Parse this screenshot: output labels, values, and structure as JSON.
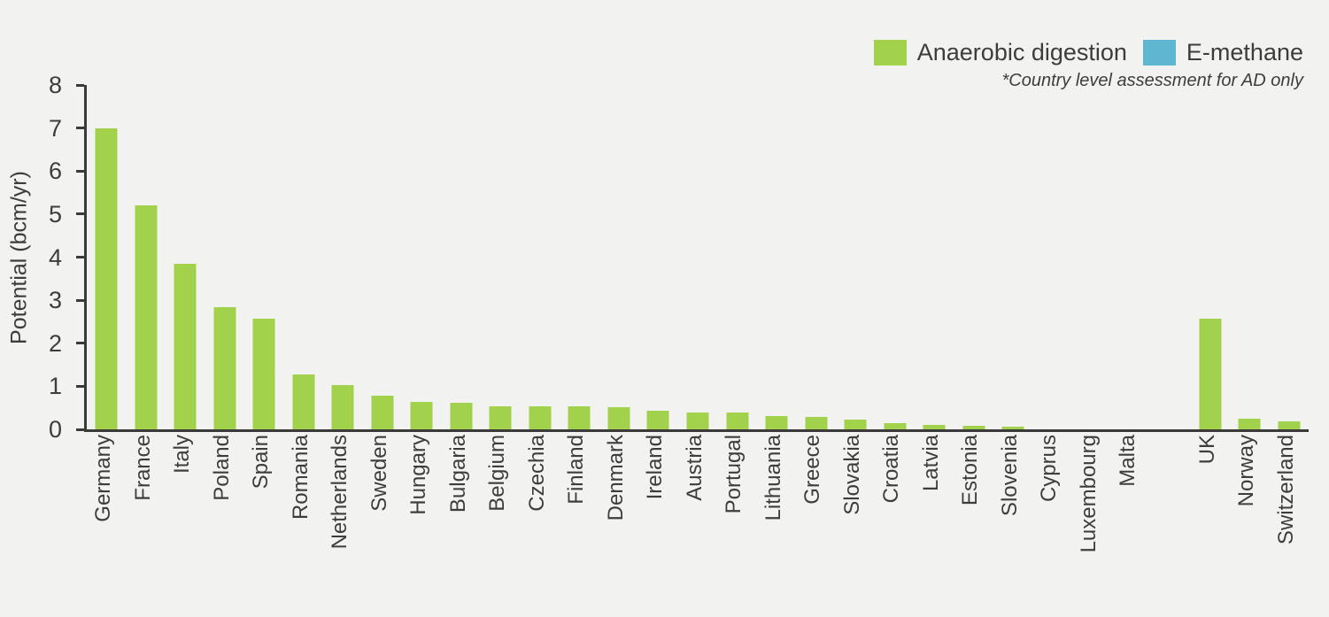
{
  "chart_data": {
    "type": "bar",
    "title": "",
    "xlabel": "",
    "ylabel": "Potential (bcm/yr)",
    "ylim": [
      0,
      8
    ],
    "yticks": [
      0,
      1,
      2,
      3,
      4,
      5,
      6,
      7,
      8
    ],
    "grid": false,
    "legend_position": "top-right",
    "note": "*Country level assessment for AD only",
    "categories": [
      "Germany",
      "France",
      "Italy",
      "Poland",
      "Spain",
      "Romania",
      "Netherlands",
      "Sweden",
      "Hungary",
      "Bulgaria",
      "Belgium",
      "Czechia",
      "Finland",
      "Denmark",
      "Ireland",
      "Austria",
      "Portugal",
      "Lithuania",
      "Greece",
      "Slovakia",
      "Croatia",
      "Latvia",
      "Estonia",
      "Slovenia",
      "Cyprus",
      "Luxembourg",
      "Malta",
      "",
      "UK",
      "Norway",
      "Switzerland"
    ],
    "series": [
      {
        "name": "Anaerobic digestion",
        "color": "#a2d14b",
        "values": [
          7.0,
          5.2,
          3.85,
          2.83,
          2.58,
          1.27,
          1.03,
          0.78,
          0.64,
          0.61,
          0.54,
          0.54,
          0.53,
          0.52,
          0.44,
          0.4,
          0.39,
          0.31,
          0.28,
          0.23,
          0.14,
          0.1,
          0.08,
          0.06,
          0,
          0,
          0,
          null,
          2.58,
          0.25,
          0.19
        ]
      },
      {
        "name": "E-methane",
        "color": "#5fb6d1",
        "values": []
      }
    ]
  },
  "colors": {
    "background": "#f2f2f0",
    "axis": "#3a3a3a",
    "text": "#3d3d3d"
  }
}
